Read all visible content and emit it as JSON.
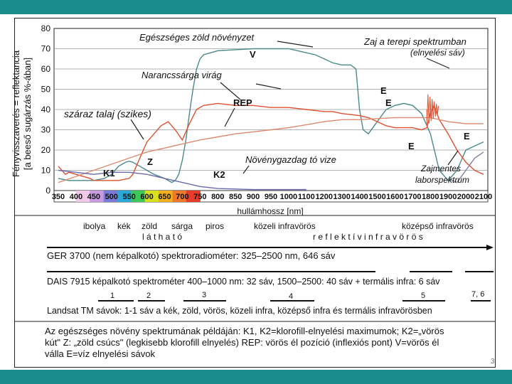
{
  "page_number": "3",
  "chart_data": {
    "type": "line",
    "ylabel_1": "Fényvisszaverés = reflektancia",
    "ylabel_2": "[a beeső sugárzás %-ában]",
    "xlabel": "hullámhossz [nm]",
    "ylim": [
      0,
      80
    ],
    "yticks": [
      "0",
      "10",
      "20",
      "30",
      "40",
      "50",
      "60",
      "70",
      "80"
    ],
    "xticks": [
      "350",
      "400",
      "450",
      "500",
      "550",
      "600",
      "650",
      "700",
      "750",
      "800",
      "850",
      "900",
      "950",
      "1000",
      "1100",
      "1200",
      "1300",
      "1400",
      "1500",
      "1600",
      "1700",
      "1800",
      "1900",
      "2000",
      "2100"
    ],
    "spectrum_colors": [
      "#ffffff",
      "#f0c8e8",
      "#c89ae0",
      "#7a7ad8",
      "#2aa8d8",
      "#3cc85a",
      "#d8e020",
      "#f0b020",
      "#f07828",
      "#e83c2a",
      "#ffffff"
    ],
    "series": [
      {
        "name": "Egészséges zöld növényzet",
        "color": "#4a8a8a",
        "x": [
          350,
          380,
          400,
          420,
          450,
          480,
          500,
          520,
          540,
          550,
          560,
          580,
          600,
          620,
          650,
          670,
          680,
          690,
          700,
          710,
          720,
          730,
          740,
          750,
          760,
          780,
          800,
          850,
          900,
          950,
          980,
          1000,
          1050,
          1100,
          1150,
          1200,
          1250,
          1300,
          1350,
          1380,
          1400,
          1420,
          1450,
          1500,
          1550,
          1600,
          1650,
          1700,
          1750,
          1800,
          1850,
          1900,
          1950,
          2000,
          2050,
          2100
        ],
        "y": [
          6,
          5,
          5,
          5,
          5,
          6,
          8,
          12,
          14,
          14.5,
          14,
          12,
          10,
          8,
          6,
          4,
          5,
          8,
          15,
          25,
          38,
          50,
          60,
          65,
          67,
          68,
          69,
          69.5,
          70,
          70,
          70,
          70,
          69,
          68,
          67,
          65,
          63,
          62,
          62,
          60,
          40,
          30,
          28,
          34,
          40,
          42,
          43,
          42,
          38,
          28,
          10,
          5,
          10,
          20,
          22,
          24
        ]
      },
      {
        "name": "Narancssárga virág",
        "color": "#e05030",
        "x": [
          350,
          370,
          380,
          400,
          420,
          440,
          450,
          500,
          520,
          550,
          560,
          580,
          600,
          620,
          640,
          660,
          680,
          700,
          720,
          740,
          760,
          800,
          850,
          900,
          950,
          1000,
          1050,
          1100,
          1150,
          1200,
          1250,
          1300,
          1350,
          1400,
          1450,
          1500,
          1550,
          1600,
          1650,
          1700,
          1750,
          1780,
          1800,
          1820,
          1850,
          1900,
          1950,
          2000,
          2050,
          2100
        ],
        "y": [
          12,
          8,
          9,
          8,
          7,
          6,
          5,
          5,
          5,
          6,
          8,
          16,
          24,
          28,
          32,
          34,
          30,
          25,
          33,
          40,
          42,
          43,
          42,
          42,
          41,
          41,
          40.5,
          40,
          39.5,
          39,
          39,
          38,
          37.5,
          37,
          36,
          34,
          32,
          31,
          31,
          31,
          30,
          31,
          38,
          42,
          35,
          28,
          20,
          14,
          10,
          8
        ]
      },
      {
        "name": "száraz talaj (szikes)",
        "color": "#e08a70",
        "x": [
          350,
          400,
          450,
          500,
          550,
          600,
          650,
          700,
          750,
          800,
          850,
          900,
          950,
          1000,
          1100,
          1200,
          1300,
          1400,
          1500,
          1600,
          1700,
          1800,
          1900,
          2000,
          2100
        ],
        "y": [
          4,
          7,
          10,
          13,
          16,
          19,
          21,
          23,
          25,
          26.5,
          28,
          29,
          30,
          31,
          32.5,
          34,
          35,
          35,
          35.5,
          36,
          36,
          36,
          34,
          33,
          33
        ]
      },
      {
        "name": "Növénygazdag tó vize",
        "color": "#6a6ab0",
        "x": [
          350,
          400,
          450,
          500,
          550,
          600,
          650,
          700,
          750,
          800,
          900,
          1000,
          1100
        ],
        "y": [
          10,
          9,
          8,
          9,
          9,
          8,
          6,
          4,
          2,
          1,
          0.5,
          0.5,
          0.5
        ]
      },
      {
        "name": "Zajmentes laborspektrum",
        "color": "#8080a0",
        "x": [
          1900,
          1950,
          2000,
          2050,
          2100
        ],
        "y": [
          6,
          4,
          10,
          16,
          19
        ]
      }
    ],
    "annotations": {
      "healthy": "Egészséges zöld növényzet",
      "noise_1": "Zaj a terepi spektrumban",
      "noise_2": "(elnyelési sáv)",
      "orange_flower": "Narancssárga virág",
      "dry_soil": "száraz talaj (szikes)",
      "lake_water": "Növénygazdag tó vize",
      "noise_free_1": "Zajmentes",
      "noise_free_2": "laborspektrum",
      "v": "V",
      "rep": "REP",
      "k1": "K1",
      "k2": "K2",
      "z": "Z",
      "e": "E"
    }
  },
  "bands": {
    "colors": [
      {
        "label": "ibolya"
      },
      {
        "label": "kék"
      },
      {
        "label": "zöld"
      },
      {
        "label": "sárga"
      },
      {
        "label": "piros"
      },
      {
        "label": "közeli infravörös"
      },
      {
        "label": "középső infravörös"
      }
    ],
    "visible": "l á t h a t ó",
    "reflective": "r e f l e k t í v   i n f r a v ö r ö s",
    "ger": "GER 3700 (nem képalkotó) spektroradiométer: 325–2500 nm, 646 sáv",
    "dais": "DAIS 7915 képalkotó spektrométer 400–1000 nm: 32 sáv, 1500–2500: 40 sáv + termális infra: 6 sáv",
    "landsat_bands": [
      "1",
      "2",
      "3",
      "4",
      "5",
      "7, 6"
    ],
    "landsat": "Landsat TM sávok: 1-1 sáv a kék, zöld, vörös, közeli infra, középső infra és termális infravörösben"
  },
  "caption": {
    "line1": "Az egészséges növény spektrumának példáján: K1, K2=klorofill-elnyelési maximumok; K2=„vörös",
    "line2": "kút\"  Z: „zöld csúcs\" (legkisebb klorofill elnyelés) REP: vörös él pozíció (inflexiós pont) V=vörös él",
    "line3": "válla  E=víz elnyelési sávok"
  }
}
